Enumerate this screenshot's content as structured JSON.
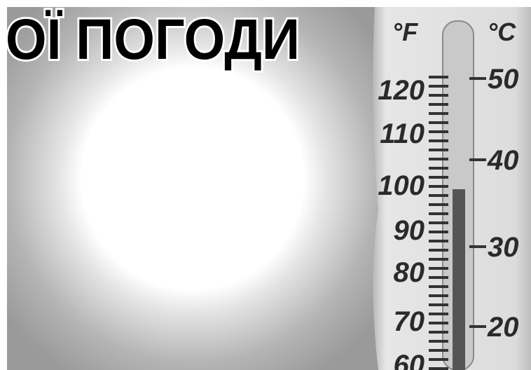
{
  "title": "ОЇ ПОГОДИ",
  "thermometer": {
    "fahrenheit_unit": "°F",
    "celsius_unit": "°C",
    "fahrenheit_labels": [
      "120",
      "110",
      "100",
      "90",
      "80",
      "70",
      "60"
    ],
    "celsius_labels": [
      "50",
      "40",
      "30",
      "20"
    ]
  }
}
